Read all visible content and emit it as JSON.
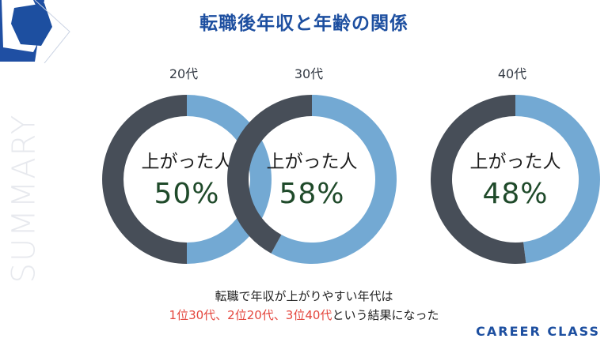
{
  "title": "転職後年収と年齢の関係",
  "side_word": "SUMMARY",
  "brand": "CAREER CLASS",
  "colors": {
    "up": "#73a9d3",
    "other": "#474e58",
    "accent": "#1d4fa0",
    "highlight": "#e4463d"
  },
  "chart_data": [
    {
      "type": "pie",
      "donut": true,
      "title": "20代",
      "center_label": "上がった人",
      "center_value": "50%",
      "values": [
        50,
        50
      ]
    },
    {
      "type": "pie",
      "donut": true,
      "title": "30代",
      "center_label": "上がった人",
      "center_value": "58%",
      "values": [
        58,
        42
      ]
    },
    {
      "type": "pie",
      "donut": true,
      "title": "40代",
      "center_label": "上がった人",
      "center_value": "48%",
      "values": [
        48,
        52
      ]
    }
  ],
  "caption": {
    "line1": "転職で年収が上がりやすい年代は",
    "line2_highlight": "1位30代、2位20代、3位40代",
    "line2_rest": "という結果になった"
  }
}
